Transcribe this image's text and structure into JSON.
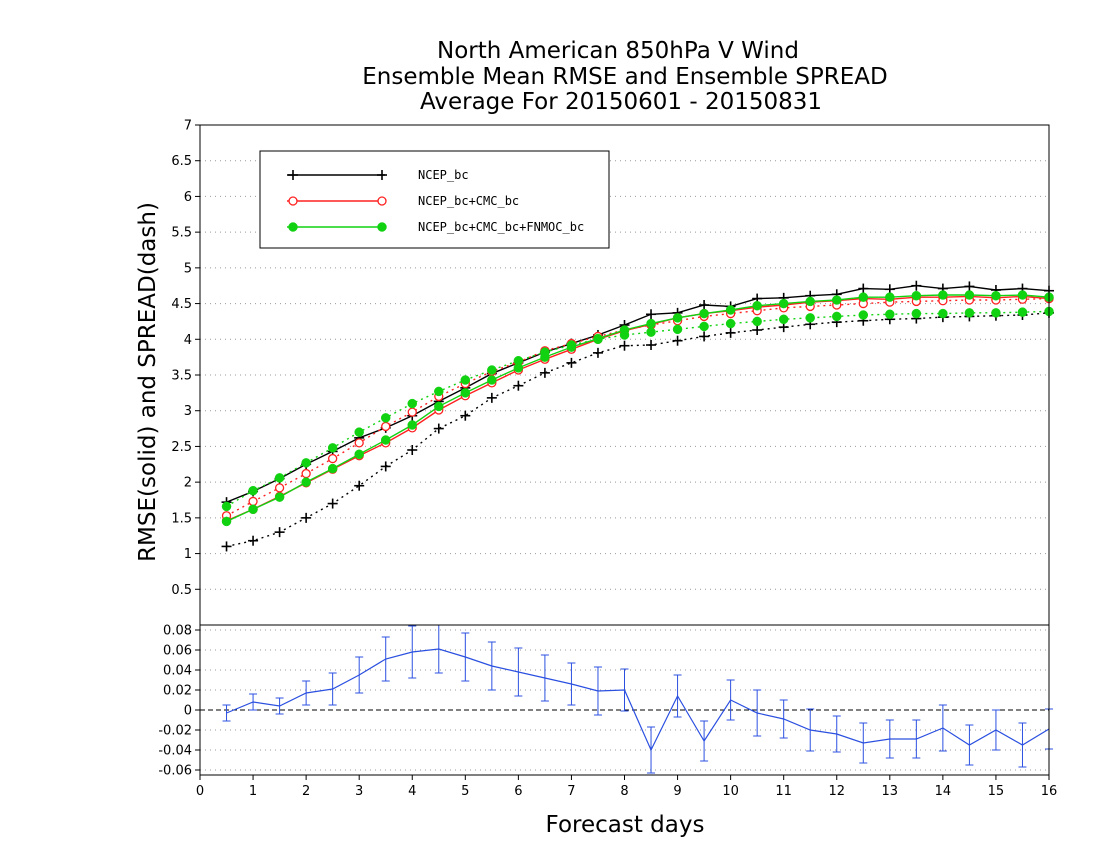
{
  "chart_data": {
    "type": "line",
    "title_lines": [
      "North American 850hPa V Wind",
      "Ensemble Mean RMSE and Ensemble SPREAD",
      "Average For 20150601 - 20150831"
    ],
    "xlabel": "Forecast days",
    "ylabel": "RMSE(solid) and SPREAD(dash)",
    "xlim": [
      0,
      16
    ],
    "ylim": [
      0,
      7
    ],
    "x_ticks": [
      "0",
      "1",
      "2",
      "3",
      "4",
      "5",
      "6",
      "7",
      "8",
      "9",
      "10",
      "11",
      "12",
      "13",
      "14",
      "15",
      "16"
    ],
    "y_ticks": [
      "0.5",
      "1",
      "1.5",
      "2",
      "2.5",
      "3",
      "3.5",
      "4",
      "4.5",
      "5",
      "5.5",
      "6",
      "6.5",
      "7"
    ],
    "grid": true,
    "legend_position": "top-left",
    "x": [
      0.5,
      1,
      1.5,
      2,
      2.5,
      3,
      3.5,
      4,
      4.5,
      5,
      5.5,
      6,
      6.5,
      7,
      7.5,
      8,
      8.5,
      9,
      9.5,
      10,
      10.5,
      11,
      11.5,
      12,
      12.5,
      13,
      13.5,
      14,
      14.5,
      15,
      15.5,
      16
    ],
    "series": [
      {
        "name": "NCEP_bc",
        "color": "#000000",
        "marker": "plus",
        "rmse": [
          1.72,
          1.87,
          2.05,
          2.25,
          2.43,
          2.62,
          2.76,
          2.93,
          3.13,
          3.32,
          3.52,
          3.67,
          3.82,
          3.94,
          4.06,
          4.2,
          4.35,
          4.37,
          4.48,
          4.46,
          4.57,
          4.58,
          4.61,
          4.63,
          4.71,
          4.7,
          4.75,
          4.71,
          4.74,
          4.69,
          4.71,
          4.68
        ],
        "spread": [
          1.1,
          1.18,
          1.3,
          1.5,
          1.7,
          1.95,
          2.22,
          2.45,
          2.75,
          2.93,
          3.18,
          3.35,
          3.53,
          3.67,
          3.81,
          3.91,
          3.92,
          3.98,
          4.04,
          4.09,
          4.13,
          4.17,
          4.21,
          4.24,
          4.26,
          4.28,
          4.29,
          4.31,
          4.32,
          4.33,
          4.34,
          4.37
        ]
      },
      {
        "name": "NCEP_bc+CMC_bc",
        "color": "#ff2020",
        "marker": "open-circle",
        "rmse": [
          1.46,
          1.62,
          1.8,
          1.99,
          2.18,
          2.37,
          2.55,
          2.76,
          3.01,
          3.21,
          3.39,
          3.57,
          3.72,
          3.86,
          4.0,
          4.12,
          4.21,
          4.3,
          4.36,
          4.4,
          4.45,
          4.48,
          4.52,
          4.54,
          4.57,
          4.56,
          4.59,
          4.59,
          4.6,
          4.58,
          4.6,
          4.57
        ],
        "spread": [
          1.53,
          1.73,
          1.92,
          2.12,
          2.33,
          2.55,
          2.78,
          2.98,
          3.2,
          3.38,
          3.55,
          3.68,
          3.84,
          3.94,
          4.04,
          4.13,
          4.2,
          4.26,
          4.32,
          4.36,
          4.4,
          4.44,
          4.46,
          4.48,
          4.5,
          4.52,
          4.53,
          4.54,
          4.55,
          4.55,
          4.56,
          4.57
        ]
      },
      {
        "name": "NCEP_bc+CMC_bc+FNMOC_bc",
        "color": "#11d211",
        "marker": "filled-circle",
        "rmse": [
          1.45,
          1.62,
          1.79,
          2.0,
          2.19,
          2.39,
          2.59,
          2.8,
          3.06,
          3.25,
          3.43,
          3.6,
          3.75,
          3.89,
          4.01,
          4.13,
          4.22,
          4.3,
          4.36,
          4.41,
          4.47,
          4.5,
          4.53,
          4.55,
          4.59,
          4.59,
          4.61,
          4.62,
          4.62,
          4.61,
          4.62,
          4.59
        ],
        "spread": [
          1.66,
          1.88,
          2.06,
          2.27,
          2.48,
          2.7,
          2.9,
          3.1,
          3.27,
          3.43,
          3.57,
          3.7,
          3.82,
          3.92,
          4.0,
          4.06,
          4.1,
          4.14,
          4.18,
          4.22,
          4.25,
          4.28,
          4.3,
          4.32,
          4.34,
          4.35,
          4.36,
          4.36,
          4.37,
          4.37,
          4.38,
          4.39
        ]
      }
    ],
    "diff_panel": {
      "ylim": [
        -0.065,
        0.085
      ],
      "y_ticks": [
        "-0.06",
        "-0.04",
        "-0.02",
        "0",
        "0.02",
        "0.04",
        "0.06",
        "0.08"
      ],
      "color": "#2b50e0",
      "values": [
        -0.003,
        0.008,
        0.004,
        0.017,
        0.021,
        0.035,
        0.051,
        0.058,
        0.061,
        0.053,
        0.044,
        0.038,
        0.032,
        0.026,
        0.019,
        0.02,
        -0.04,
        0.014,
        -0.031,
        0.01,
        -0.003,
        -0.009,
        -0.02,
        -0.024,
        -0.033,
        -0.029,
        -0.029,
        -0.018,
        -0.035,
        -0.02,
        -0.035,
        -0.019
      ],
      "err": [
        0.008,
        0.008,
        0.008,
        0.012,
        0.016,
        0.018,
        0.022,
        0.026,
        0.024,
        0.024,
        0.024,
        0.024,
        0.023,
        0.021,
        0.024,
        0.021,
        0.023,
        0.021,
        0.02,
        0.02,
        0.023,
        0.019,
        0.021,
        0.018,
        0.02,
        0.019,
        0.019,
        0.023,
        0.02,
        0.02,
        0.022,
        0.02
      ]
    }
  }
}
